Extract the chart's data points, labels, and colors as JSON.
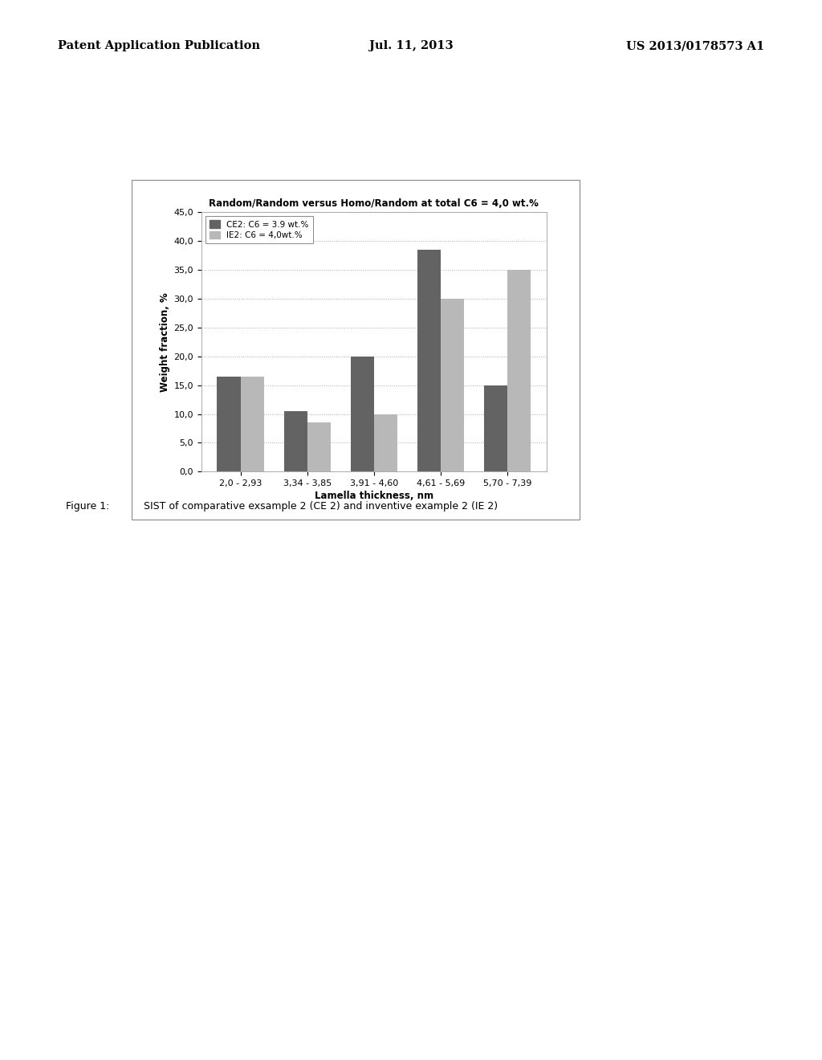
{
  "title": "Random/Random versus Homo/Random at total C6 = 4,0 wt.%",
  "xlabel": "Lamella thickness, nm",
  "ylabel": "Weight fraction, %",
  "categories": [
    "2,0 - 2,93",
    "3,34 - 3,85",
    "3,91 - 4,60",
    "4,61 - 5,69",
    "5,70 - 7,39"
  ],
  "series": [
    {
      "label": "CE2: C6 = 3.9 wt.%",
      "values": [
        16.5,
        10.5,
        20.0,
        38.5,
        15.0
      ],
      "color": "#636363"
    },
    {
      "label": "IE2: C6 = 4,0wt.%",
      "values": [
        16.5,
        8.5,
        10.0,
        30.0,
        35.0
      ],
      "color": "#b8b8b8"
    }
  ],
  "ylim": [
    0,
    45
  ],
  "yticks": [
    0.0,
    5.0,
    10.0,
    15.0,
    20.0,
    25.0,
    30.0,
    35.0,
    40.0,
    45.0
  ],
  "ytick_labels": [
    "0,0",
    "5,0",
    "10,0",
    "15,0",
    "20,0",
    "25,0",
    "30,0",
    "35,0",
    "40,0",
    "45,0"
  ],
  "background_color": "#ffffff",
  "chart_bg_color": "#ffffff",
  "grid_color": "#aaaaaa",
  "bar_width": 0.35,
  "title_fontsize": 8.5,
  "axis_fontsize": 8.5,
  "tick_fontsize": 8,
  "legend_fontsize": 7.5,
  "caption_label": "Figure 1:",
  "caption_text": "SIST of comparative exsample 2 (CE 2) and inventive example 2 (IE 2)",
  "header_left": "Patent Application Publication",
  "header_center": "Jul. 11, 2013",
  "header_right": "US 2013/0178573 A1"
}
